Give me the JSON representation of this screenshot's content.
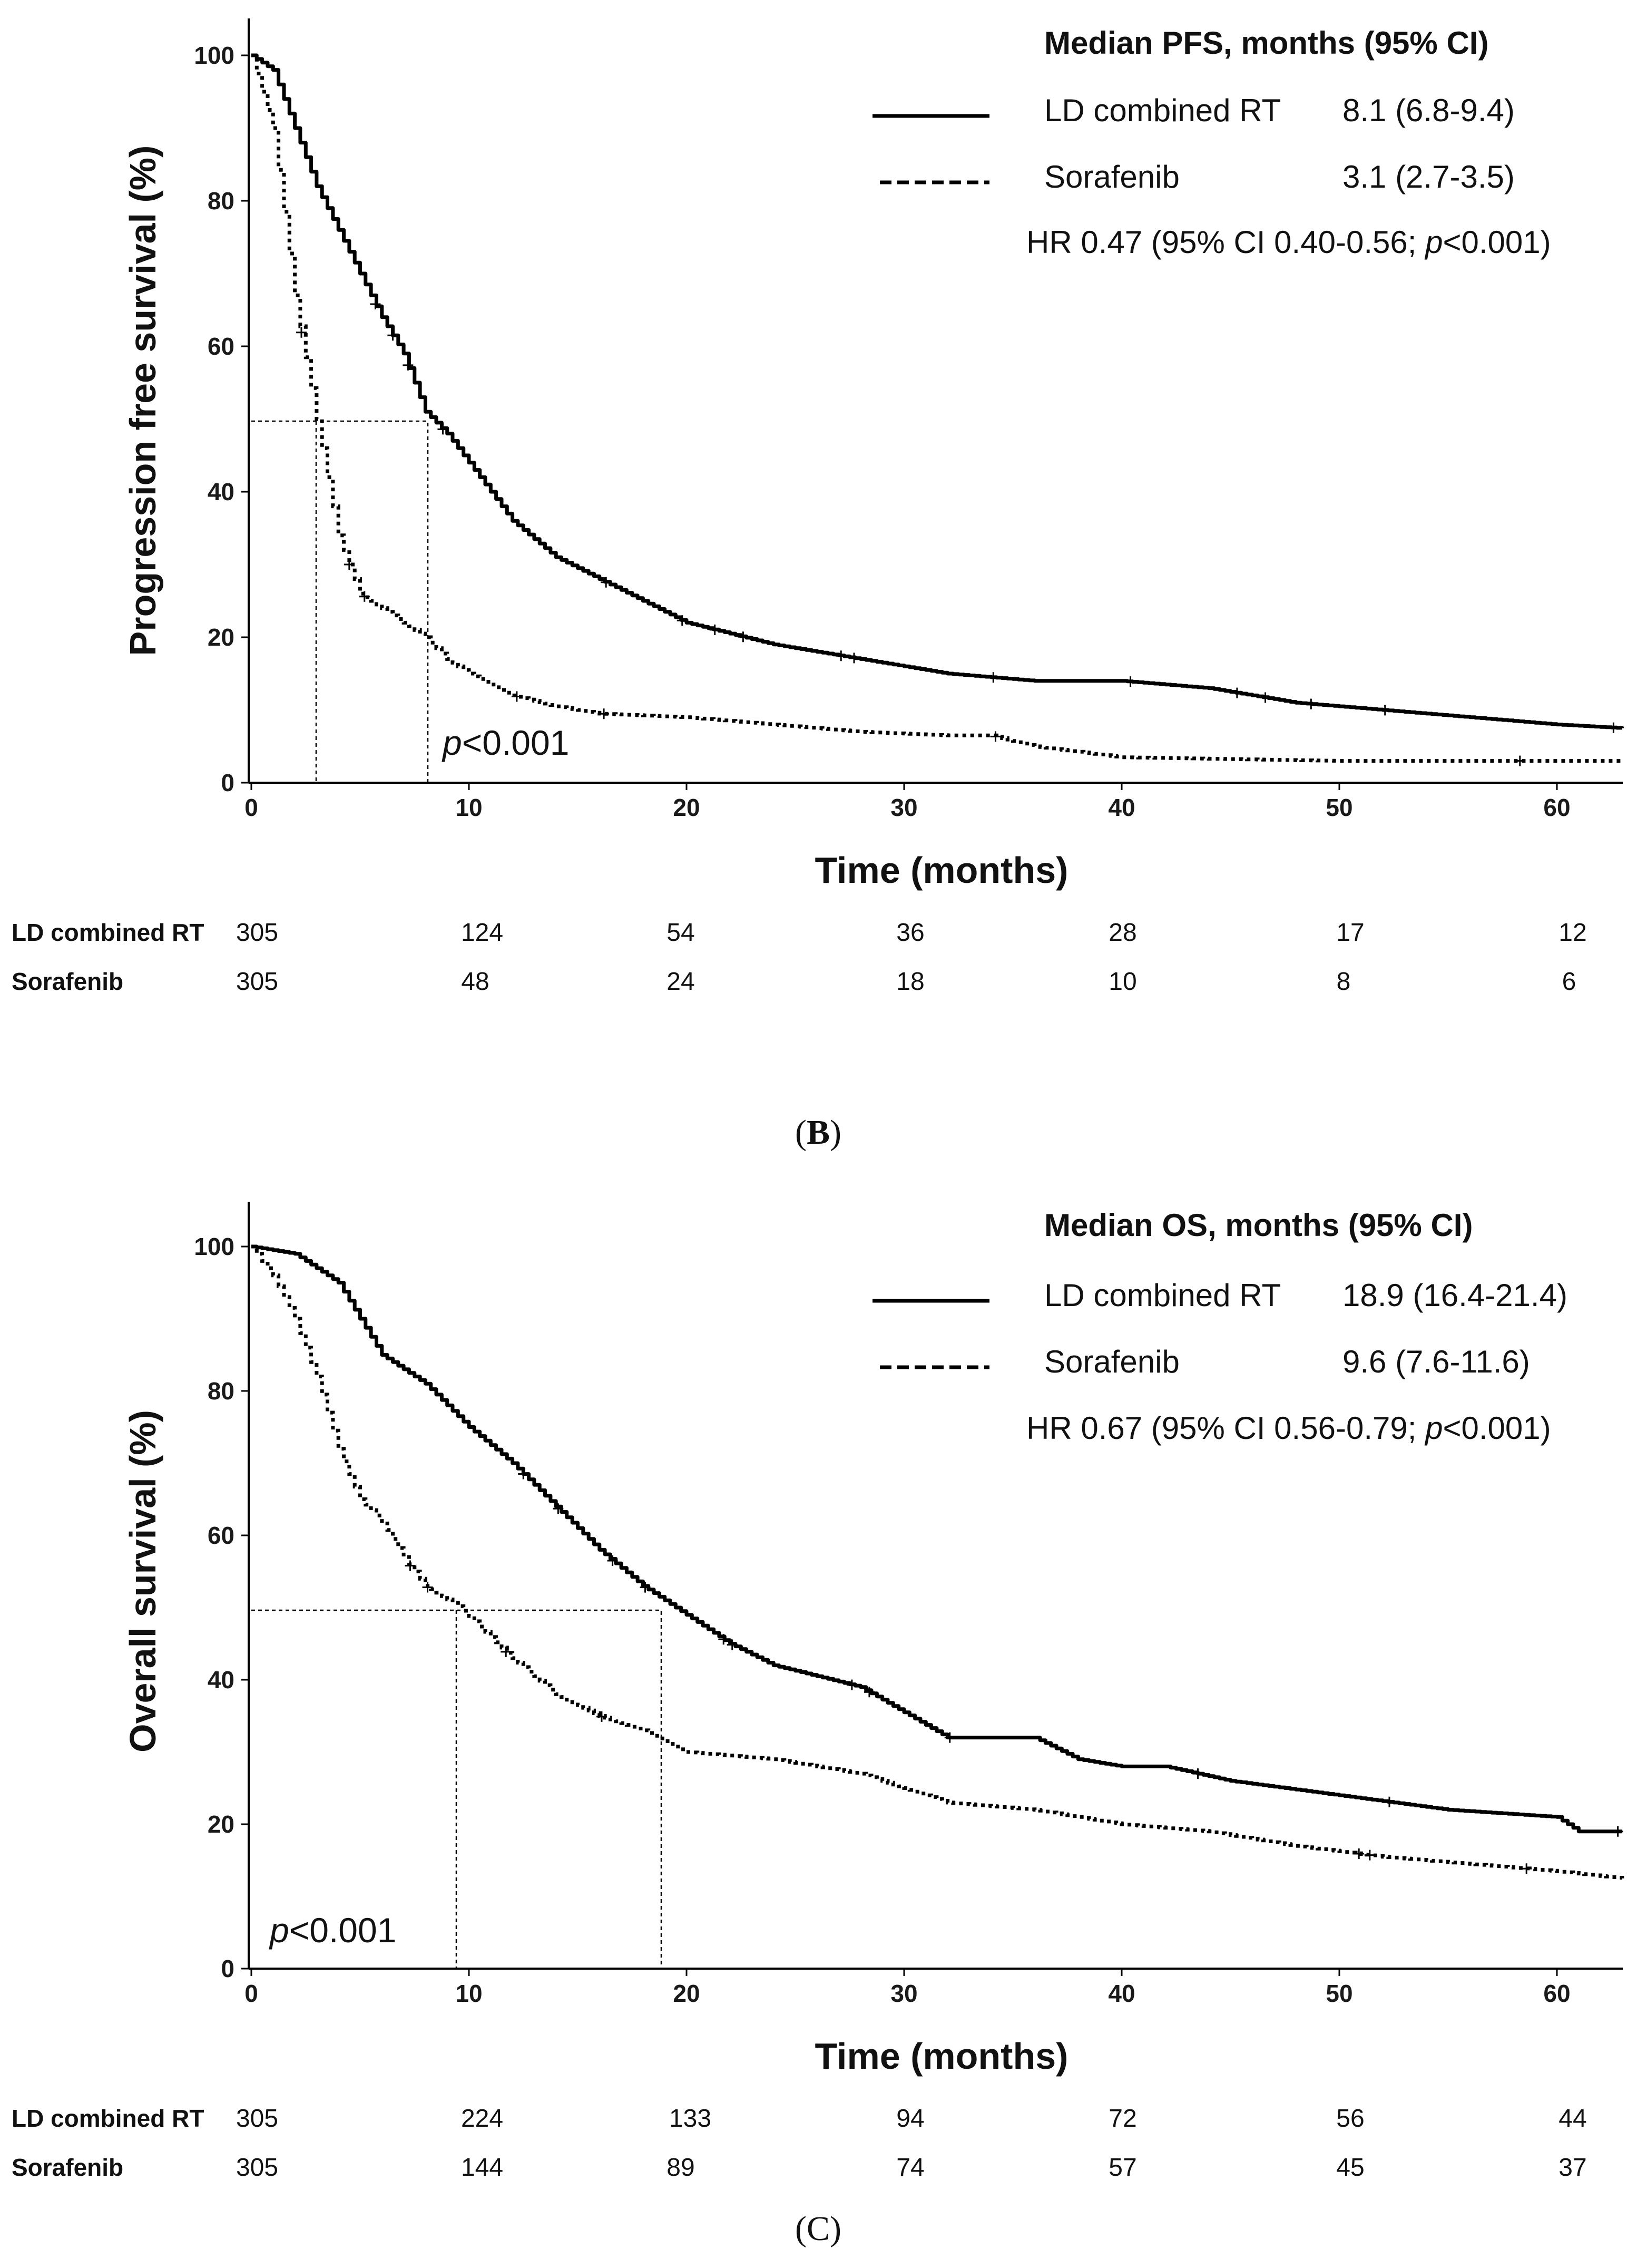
{
  "chart_data": [
    {
      "type": "line",
      "title": "",
      "ylabel": "Progression free survival (%)",
      "xlabel": "Time (months)",
      "xlim": [
        0,
        63
      ],
      "ylim": [
        0,
        105
      ],
      "xticks": [
        0,
        10,
        20,
        30,
        40,
        50,
        60
      ],
      "yticks": [
        0,
        20,
        40,
        60,
        80,
        100
      ],
      "legend": {
        "header": "Median PFS, months (95% CI)",
        "entries": [
          {
            "name": "LD combined RT",
            "value": "8.1 (6.8-9.4)",
            "style": "solid"
          },
          {
            "name": "Sorafenib",
            "value": "3.1 (2.7-3.5)",
            "style": "dotted"
          }
        ],
        "hr_prefix": "HR 0.47 (95% CI 0.40-0.56; ",
        "hr_p": "p",
        "hr_suffix": "<0.001)"
      },
      "pvalue": {
        "p": "p",
        "rest": "<0.001"
      },
      "medians": [
        8.1,
        3.1
      ],
      "series": [
        {
          "name": "LD combined RT",
          "style": "solid",
          "x": [
            0,
            1,
            2,
            3,
            4,
            5,
            6,
            7,
            8,
            9,
            10,
            12,
            14,
            16,
            18,
            20,
            24,
            28,
            32,
            36,
            40,
            44,
            48,
            52,
            56,
            60,
            63
          ],
          "y": [
            100,
            98,
            90,
            82,
            76,
            70,
            64,
            59,
            51,
            48,
            44,
            36,
            31,
            28,
            25,
            22,
            19,
            17,
            15,
            14,
            14,
            13,
            11,
            10,
            9,
            8,
            7.5
          ]
        },
        {
          "name": "Sorafenib",
          "style": "dotted",
          "x": [
            0,
            1,
            2,
            3,
            4,
            5,
            6,
            7,
            8,
            9,
            10,
            12,
            14,
            16,
            20,
            24,
            28,
            32,
            34,
            36,
            40,
            50,
            60,
            63
          ],
          "y": [
            100,
            90,
            67,
            50,
            34,
            26,
            24,
            22,
            20,
            17,
            15,
            12,
            10.5,
            9.5,
            9,
            8,
            7,
            6.5,
            6.5,
            5,
            3.5,
            3,
            3,
            3
          ]
        }
      ],
      "censor_marks": [
        {
          "series": 0,
          "x": [
            5.7,
            6.5,
            7.2,
            8.8,
            16.3,
            19.8,
            21.3,
            22.6,
            27.1,
            27.7,
            34.1,
            40.4,
            45.3,
            46.6,
            48.7,
            52.1,
            62.6
          ]
        },
        {
          "series": 1,
          "x": [
            2.3,
            4.5,
            5.2,
            12.2,
            16.2,
            34.2,
            58.3
          ]
        }
      ],
      "risk_table": {
        "times": [
          0,
          10,
          20,
          30,
          40,
          50,
          60
        ],
        "rows": [
          {
            "label": "LD combined RT",
            "values": [
              "305",
              "124",
              "54",
              "36",
              "28",
              "17",
              "12"
            ]
          },
          {
            "label": "Sorafenib",
            "values": [
              "305",
              "48",
              "24",
              "18",
              "10",
              "8",
              "6"
            ]
          }
        ]
      },
      "panel_label": {
        "open": "(",
        "letter": "B",
        "close": ")"
      }
    },
    {
      "type": "line",
      "title": "",
      "ylabel": "Overall survival (%)",
      "xlabel": "Time (months)",
      "xlim": [
        0,
        63
      ],
      "ylim": [
        0,
        105
      ],
      "xticks": [
        0,
        10,
        20,
        30,
        40,
        50,
        60
      ],
      "yticks": [
        0,
        20,
        40,
        60,
        80,
        100
      ],
      "legend": {
        "header": "Median OS, months (95% CI)",
        "entries": [
          {
            "name": "LD combined RT",
            "value": "18.9 (16.4-21.4)",
            "style": "solid"
          },
          {
            "name": "Sorafenib",
            "value": "9.6 (7.6-11.6)",
            "style": "dotted"
          }
        ],
        "hr_prefix": "HR 0.67 (95% CI 0.56-0.79; ",
        "hr_p": "p",
        "hr_suffix": "<0.001)"
      },
      "pvalue": {
        "p": "p",
        "rest": "<0.001"
      },
      "medians": [
        18.9,
        9.6
      ],
      "series": [
        {
          "name": "LD combined RT",
          "style": "solid",
          "x": [
            0,
            2,
            4,
            5,
            6,
            8,
            10,
            12,
            14,
            16,
            18,
            20,
            22,
            24,
            28,
            32,
            36,
            38,
            40,
            42,
            45,
            50,
            55,
            60,
            61,
            63
          ],
          "y": [
            100,
            99,
            95,
            90,
            85,
            81,
            75,
            70,
            64,
            58,
            53,
            49,
            45,
            42,
            39,
            32,
            32,
            29,
            28,
            28,
            26,
            24,
            22,
            21,
            19,
            19
          ]
        },
        {
          "name": "Sorafenib",
          "style": "dotted",
          "x": [
            0,
            1,
            2,
            3,
            4,
            5,
            6,
            7,
            8,
            9.6,
            12,
            14,
            16,
            18,
            20,
            24,
            28,
            30,
            32,
            36,
            40,
            44,
            48,
            52,
            56,
            60,
            63
          ],
          "y": [
            100,
            96,
            90,
            82,
            72,
            65,
            62,
            57,
            53,
            50,
            43,
            38,
            35,
            33,
            30,
            29,
            27,
            25,
            23,
            22,
            20,
            19,
            17,
            15.5,
            14.5,
            13.5,
            12.5
          ]
        },
        {
          "name": "",
          "style": "none",
          "x": [],
          "y": []
        }
      ],
      "censor_marks": [
        {
          "series": 0,
          "x": [
            12.5,
            14.1,
            16.6,
            18.1,
            21.7,
            22.1,
            27.6,
            28.4,
            32.1,
            43.5,
            52.3,
            62.8
          ]
        },
        {
          "series": 1,
          "x": [
            7.3,
            8.1,
            11.7,
            16.1,
            50.9,
            51.4,
            58.6
          ]
        }
      ],
      "risk_table": {
        "times": [
          0,
          10,
          20,
          30,
          40,
          50,
          60
        ],
        "rows": [
          {
            "label": "LD combined RT",
            "values": [
              "305",
              "224",
              "133",
              "94",
              "72",
              "56",
              "44"
            ]
          },
          {
            "label": "Sorafenib",
            "values": [
              "305",
              "144",
              "89",
              "74",
              "57",
              "45",
              "37"
            ]
          }
        ]
      },
      "panel_label": {
        "open": "(",
        "letter": "C",
        "close": ")"
      }
    }
  ]
}
